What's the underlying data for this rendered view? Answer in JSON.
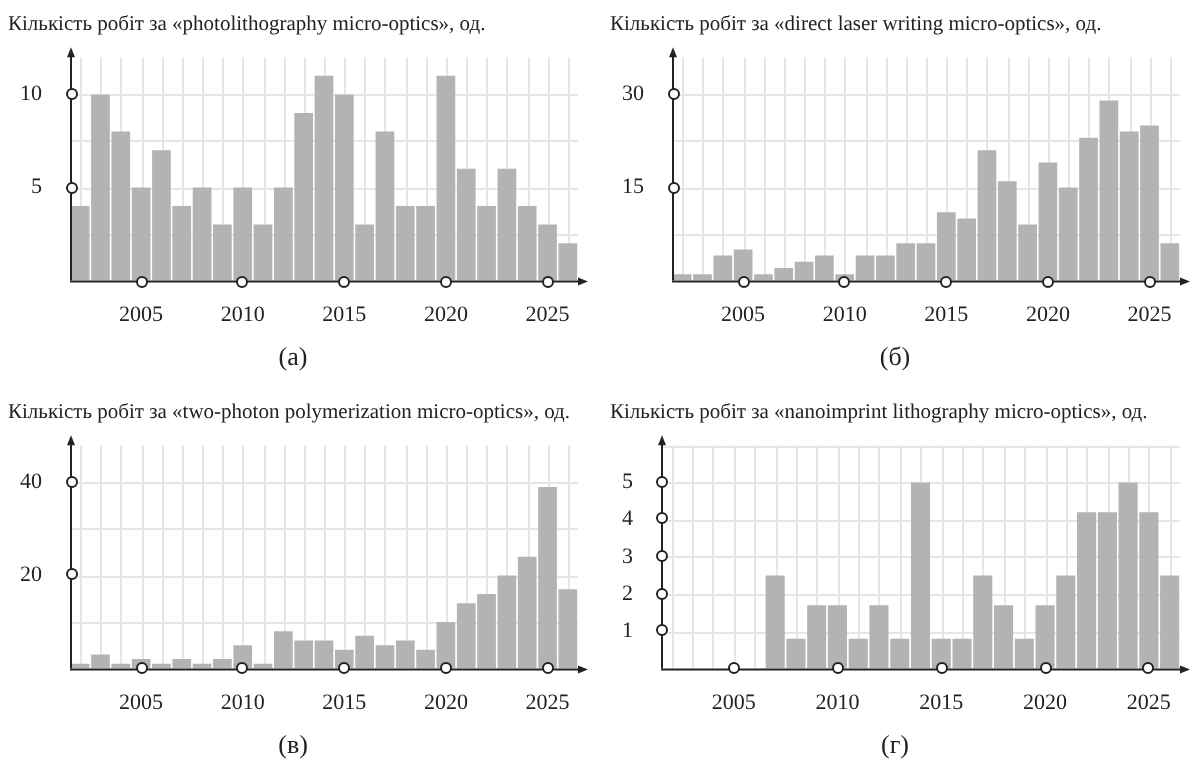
{
  "chart_data": [
    {
      "type": "bar",
      "title": "Кількість робіт за «photolithography micro-optics», од.",
      "annotations": [
        "(а)"
      ],
      "color": "#b3b3b3",
      "grid": true,
      "x": [
        2002,
        2003,
        2004,
        2005,
        2006,
        2007,
        2008,
        2009,
        2010,
        2011,
        2012,
        2013,
        2014,
        2015,
        2016,
        2017,
        2018,
        2019,
        2020,
        2021,
        2022,
        2023,
        2024,
        2025,
        2026
      ],
      "values": [
        4,
        10,
        8,
        5,
        7,
        4,
        5,
        3,
        5,
        3,
        5,
        9,
        11,
        10,
        3,
        8,
        4,
        4,
        11,
        6,
        4,
        6,
        4,
        3,
        2
      ],
      "xlim": [
        2001.5,
        2026.5
      ],
      "xticks": [
        2005,
        2010,
        2015,
        2020,
        2025
      ],
      "ylim": [
        0,
        12
      ],
      "yticks": [
        5,
        10
      ]
    },
    {
      "type": "bar",
      "title": "Кількість робіт за «direct laser writing micro-optics», од.",
      "annotations": [
        "(б)"
      ],
      "color": "#b3b3b3",
      "grid": true,
      "x": [
        2002,
        2003,
        2004,
        2005,
        2006,
        2007,
        2008,
        2009,
        2010,
        2011,
        2012,
        2013,
        2014,
        2015,
        2016,
        2017,
        2018,
        2019,
        2020,
        2021,
        2022,
        2023,
        2024,
        2025,
        2026
      ],
      "values": [
        1,
        1,
        4,
        5,
        1,
        2,
        3,
        4,
        1,
        4,
        4,
        6,
        6,
        11,
        10,
        21,
        16,
        9,
        19,
        15,
        23,
        29,
        24,
        25,
        6
      ],
      "xlim": [
        2001.5,
        2026.5
      ],
      "xticks": [
        2005,
        2010,
        2015,
        2020,
        2025
      ],
      "ylim": [
        0,
        36
      ],
      "yticks": [
        15,
        30
      ]
    },
    {
      "type": "bar",
      "title": "Кількість робіт за «two-photon polymerization micro-optics», од.",
      "annotations": [
        "(в)"
      ],
      "color": "#b3b3b3",
      "grid": true,
      "x": [
        2002,
        2003,
        2004,
        2005,
        2006,
        2007,
        2008,
        2009,
        2010,
        2011,
        2012,
        2013,
        2014,
        2015,
        2016,
        2017,
        2018,
        2019,
        2020,
        2021,
        2022,
        2023,
        2024,
        2025,
        2026
      ],
      "values": [
        1,
        3,
        1,
        2,
        1,
        2,
        1,
        2,
        5,
        1,
        8,
        6,
        6,
        4,
        7,
        5,
        6,
        4,
        10,
        14,
        16,
        20,
        24,
        39,
        17
      ],
      "xlim": [
        2001.5,
        2026.5
      ],
      "xticks": [
        2005,
        2010,
        2015,
        2020,
        2025
      ],
      "ylim": [
        0,
        48
      ],
      "yticks": [
        20,
        40
      ]
    },
    {
      "type": "bar",
      "title": "Кількість робіт за «nanoimprint lithography micro-optics», од.",
      "annotations": [
        "(г)"
      ],
      "color": "#b3b3b3",
      "grid": true,
      "x": [
        2002,
        2003,
        2004,
        2005,
        2006,
        2007,
        2008,
        2009,
        2010,
        2011,
        2012,
        2013,
        2014,
        2015,
        2016,
        2017,
        2018,
        2019,
        2020,
        2021,
        2022,
        2023,
        2024,
        2025,
        2026
      ],
      "values": [
        0,
        0,
        0,
        0,
        0,
        2.5,
        0.8,
        1.7,
        1.7,
        0.8,
        1.7,
        0.8,
        5,
        0.8,
        0.8,
        2.5,
        1.7,
        0.8,
        1.7,
        2.5,
        4.2,
        4.2,
        5,
        4.2,
        2.5
      ],
      "xlim": [
        2001.5,
        2026.5
      ],
      "xticks": [
        2005,
        2010,
        2015,
        2020,
        2025
      ],
      "ylim": [
        0,
        6
      ],
      "yticks": [
        1,
        2,
        3,
        4,
        5
      ]
    }
  ]
}
